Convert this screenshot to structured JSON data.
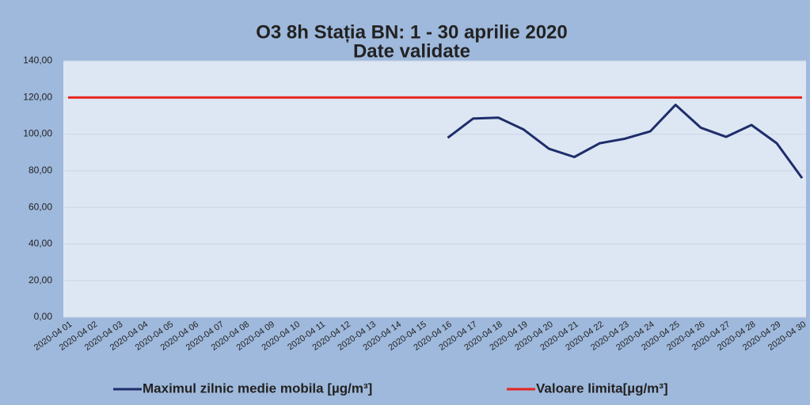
{
  "chart_data": {
    "type": "line",
    "title": "O3 8h  Stația BN:  1 -  30 aprilie 2020",
    "subtitle": "Date validate",
    "categories": [
      "2020-04 01",
      "2020-04 02",
      "2020-04 03",
      "2020-04 04",
      "2020-04 05",
      "2020-04 06",
      "2020-04 07",
      "2020-04 08",
      "2020-04 09",
      "2020-04 10",
      "2020-04 11",
      "2020-04 12",
      "2020-04 13",
      "2020-04 14",
      "2020-04 15",
      "2020-04 16",
      "2020-04 17",
      "2020-04 18",
      "2020-04 19",
      "2020-04 20",
      "2020-04 21",
      "2020-04 22",
      "2020-04 23",
      "2020-04 24",
      "2020-04 25",
      "2020-04 26",
      "2020-04 27",
      "2020-04 28",
      "2020-04 29",
      "2020-04 30"
    ],
    "series": [
      {
        "name": "Maximul zilnic medie mobila [µg/m³]",
        "color": "#1f2d6b",
        "values": [
          null,
          null,
          null,
          null,
          null,
          null,
          null,
          null,
          null,
          null,
          null,
          null,
          null,
          null,
          null,
          98,
          108.5,
          109,
          102.5,
          92,
          87.5,
          95,
          97.5,
          101.5,
          116,
          103.5,
          98.5,
          105,
          95,
          76
        ]
      },
      {
        "name": "Valoare limita[µg/m³]",
        "color": "#e8231e",
        "values": [
          120,
          120,
          120,
          120,
          120,
          120,
          120,
          120,
          120,
          120,
          120,
          120,
          120,
          120,
          120,
          120,
          120,
          120,
          120,
          120,
          120,
          120,
          120,
          120,
          120,
          120,
          120,
          120,
          120,
          120
        ]
      }
    ],
    "ylim": [
      0,
      140
    ],
    "yticks": [
      {
        "value": 0,
        "label": "0,00"
      },
      {
        "value": 20,
        "label": "20,00"
      },
      {
        "value": 40,
        "label": "40,00"
      },
      {
        "value": 60,
        "label": "60,00"
      },
      {
        "value": 80,
        "label": "80,00"
      },
      {
        "value": 100,
        "label": "100,00"
      },
      {
        "value": 120,
        "label": "120,00"
      },
      {
        "value": 140,
        "label": "140,00"
      }
    ],
    "grid": true,
    "legend": "bottom"
  }
}
